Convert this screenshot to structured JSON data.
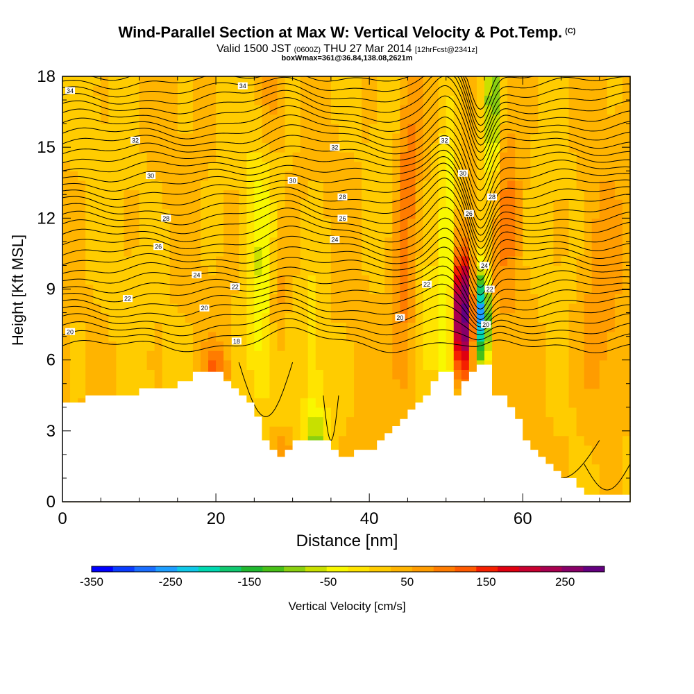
{
  "chart_data": {
    "type": "heatmap",
    "title": "Wind-Parallel Section at Max W: Vertical Velocity & Pot.Temp.",
    "title_tag": "(C)",
    "subtitle_valid": "Valid 1500 JST",
    "subtitle_zulu": "(0600Z)",
    "subtitle_date": "THU 27 Mar 2014",
    "subtitle_fcst": "[12hrFcst@2341z]",
    "subtitle2": "boxWmax=361@36.84,138.08,2621m",
    "xlabel": "Distance [nm]",
    "ylabel": "Height [Kft MSL]",
    "xlim": [
      0,
      74
    ],
    "ylim": [
      0,
      18
    ],
    "x_ticks": [
      "0",
      "20",
      "40",
      "60"
    ],
    "x_tick_values": [
      0,
      20,
      40,
      60
    ],
    "y_ticks": [
      "0",
      "3",
      "6",
      "9",
      "12",
      "15",
      "18"
    ],
    "y_tick_values": [
      0,
      3,
      6,
      9,
      12,
      15,
      18
    ],
    "colorbar": {
      "label": "Vertical Velocity [cm/s]",
      "tick_labels": [
        "-350",
        "-250",
        "-150",
        "-50",
        "50",
        "150",
        "250"
      ],
      "tick_values": [
        -350,
        -250,
        -150,
        -50,
        50,
        150,
        250
      ],
      "range": [
        -350,
        300
      ],
      "colors": [
        "#0000ff",
        "#0a3cff",
        "#1a6eff",
        "#1e9eff",
        "#10c8e8",
        "#00d8b0",
        "#10c870",
        "#20b830",
        "#48c018",
        "#8ad010",
        "#c8e000",
        "#f8f800",
        "#ffe400",
        "#ffcc00",
        "#ffb400",
        "#ff9c00",
        "#ff7c00",
        "#ff5a00",
        "#f52000",
        "#e00010",
        "#c80030",
        "#a80050",
        "#880068",
        "#640080"
      ]
    },
    "terrain": {
      "x": [
        0,
        3,
        3,
        10,
        10,
        15,
        15,
        17,
        17,
        21,
        21,
        22,
        22,
        23,
        23,
        24,
        24,
        25,
        25,
        26,
        26,
        27,
        27,
        28,
        28,
        29,
        29,
        30,
        30,
        31,
        31,
        34,
        34,
        35,
        35,
        36,
        36,
        38,
        38,
        41,
        41,
        42,
        42,
        43,
        43,
        44,
        44,
        45,
        45,
        46,
        46,
        47,
        47,
        48,
        48,
        49,
        49,
        51,
        51,
        52,
        52,
        53,
        53,
        54,
        54,
        55,
        55,
        56,
        56,
        57,
        57,
        58,
        58,
        59,
        59,
        60,
        60,
        61,
        61,
        62,
        62,
        63,
        63,
        64,
        64,
        65,
        65,
        67,
        67,
        68,
        68,
        69,
        69,
        70,
        70,
        74
      ],
      "y": [
        4.2,
        4.2,
        4.5,
        4.5,
        4.8,
        4.8,
        5.1,
        5.1,
        5.5,
        5.5,
        5.1,
        5.1,
        4.8,
        4.8,
        4.5,
        4.5,
        4.2,
        4.2,
        3.6,
        3.6,
        2.6,
        2.6,
        2.2,
        2.2,
        1.9,
        1.9,
        2.2,
        2.2,
        2.6,
        2.6,
        2.6,
        2.6,
        2.6,
        2.6,
        2.2,
        2.2,
        1.9,
        1.9,
        2.2,
        2.2,
        2.6,
        2.6,
        2.9,
        2.9,
        3.2,
        3.2,
        3.5,
        3.5,
        3.9,
        3.9,
        4.2,
        4.2,
        4.5,
        4.5,
        5.1,
        5.1,
        5.5,
        5.5,
        4.5,
        4.5,
        5.1,
        5.1,
        5.5,
        5.5,
        5.8,
        5.8,
        5.8,
        5.8,
        4.5,
        4.5,
        4.5,
        4.5,
        4.0,
        4.0,
        3.5,
        3.5,
        2.6,
        2.6,
        2.2,
        2.2,
        1.9,
        1.9,
        1.6,
        1.6,
        1.3,
        1.3,
        1.0,
        1.0,
        0.6,
        0.6,
        0.3,
        0.3,
        0.3,
        0.3,
        0.3,
        0.3
      ]
    },
    "w_features": [
      {
        "x": 52.0,
        "z": 8.0,
        "sx": 0.9,
        "sz": 1.9,
        "w": 300
      },
      {
        "x": 54.8,
        "z": 7.8,
        "sx": 0.55,
        "sz": 1.4,
        "w": -350
      },
      {
        "x": 50.3,
        "z": 10.0,
        "sx": 0.8,
        "sz": 4.0,
        "w": -120
      },
      {
        "x": 56.0,
        "z": 16.8,
        "sx": 0.8,
        "sz": 2.6,
        "w": -150
      },
      {
        "x": 26.0,
        "z": 7.5,
        "sx": 1.4,
        "sz": 3.2,
        "w": -60
      },
      {
        "x": 33.0,
        "z": 2.6,
        "sx": 1.0,
        "sz": 1.0,
        "w": -90
      },
      {
        "x": 33.0,
        "z": 6.0,
        "sx": 1.0,
        "sz": 3.5,
        "w": -40
      },
      {
        "x": 26.0,
        "z": 12.5,
        "sx": 1.2,
        "sz": 3.5,
        "w": -35
      },
      {
        "x": 43.0,
        "z": 12.0,
        "sx": 1.3,
        "sz": 3.5,
        "w": -30
      },
      {
        "x": 47.5,
        "z": 7.0,
        "sx": 0.9,
        "sz": 2.0,
        "w": -40
      },
      {
        "x": 27.0,
        "z": 16.5,
        "sx": 1.5,
        "sz": 2.0,
        "w": -30
      },
      {
        "x": 28.5,
        "z": 2.3,
        "sx": 1.0,
        "sz": 0.6,
        "w": 60
      },
      {
        "x": 27.0,
        "z": 16.6,
        "sx": 1.2,
        "sz": 2.0,
        "w": 70
      },
      {
        "x": 44.0,
        "z": 8.0,
        "sx": 1.2,
        "sz": 3.0,
        "w": 70
      },
      {
        "x": 45.0,
        "z": 14.0,
        "sx": 1.3,
        "sz": 3.0,
        "w": 80
      },
      {
        "x": 28.0,
        "z": 8.5,
        "sx": 1.0,
        "sz": 2.0,
        "w": 60
      },
      {
        "x": 20.0,
        "z": 5.6,
        "sx": 1.2,
        "sz": 0.8,
        "w": 70
      },
      {
        "x": 58.0,
        "z": 13.0,
        "sx": 1.5,
        "sz": 4.0,
        "w": 55
      },
      {
        "x": 70.0,
        "z": 8.0,
        "sx": 2.0,
        "sz": 4.0,
        "w": 50
      }
    ],
    "contour_labels": [
      {
        "x": 1.0,
        "z": 17.4,
        "text": "34"
      },
      {
        "x": 23.5,
        "z": 17.6,
        "text": "34"
      },
      {
        "x": 9.5,
        "z": 15.3,
        "text": "32"
      },
      {
        "x": 35.5,
        "z": 15.0,
        "text": "32"
      },
      {
        "x": 49.8,
        "z": 15.3,
        "text": "32"
      },
      {
        "x": 11.5,
        "z": 13.8,
        "text": "30"
      },
      {
        "x": 30.0,
        "z": 13.6,
        "text": "30"
      },
      {
        "x": 52.2,
        "z": 13.9,
        "text": "30"
      },
      {
        "x": 36.5,
        "z": 12.9,
        "text": "28"
      },
      {
        "x": 56.0,
        "z": 12.9,
        "text": "28"
      },
      {
        "x": 13.5,
        "z": 12.0,
        "text": "28"
      },
      {
        "x": 36.5,
        "z": 12.0,
        "text": "26"
      },
      {
        "x": 53.0,
        "z": 12.2,
        "text": "26"
      },
      {
        "x": 12.5,
        "z": 10.8,
        "text": "26"
      },
      {
        "x": 35.5,
        "z": 11.1,
        "text": "24"
      },
      {
        "x": 55.0,
        "z": 10.0,
        "text": "24"
      },
      {
        "x": 17.5,
        "z": 9.6,
        "text": "24"
      },
      {
        "x": 22.5,
        "z": 9.1,
        "text": "22"
      },
      {
        "x": 47.5,
        "z": 9.2,
        "text": "22"
      },
      {
        "x": 55.7,
        "z": 9.0,
        "text": "22"
      },
      {
        "x": 8.5,
        "z": 8.6,
        "text": "22"
      },
      {
        "x": 18.5,
        "z": 8.2,
        "text": "20"
      },
      {
        "x": 44.0,
        "z": 7.8,
        "text": "20"
      },
      {
        "x": 55.2,
        "z": 7.5,
        "text": "20"
      },
      {
        "x": 1.0,
        "z": 7.2,
        "text": "20"
      },
      {
        "x": 22.7,
        "z": 6.8,
        "text": "18"
      }
    ]
  }
}
